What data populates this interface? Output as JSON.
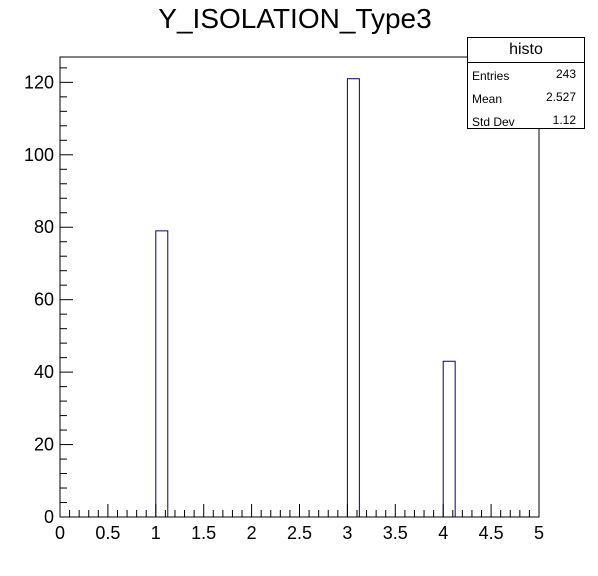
{
  "chart_data": {
    "type": "bar",
    "title": "Y_ISOLATION_Type3",
    "xlabel": "",
    "ylabel": "",
    "xlim": [
      0,
      5
    ],
    "ylim": [
      0,
      127
    ],
    "bin_width": 0.125,
    "x_ticks": [
      "0",
      "0.5",
      "1",
      "1.5",
      "2",
      "2.5",
      "3",
      "3.5",
      "4",
      "4.5",
      "5"
    ],
    "y_ticks": [
      "0",
      "20",
      "40",
      "60",
      "80",
      "100",
      "120"
    ],
    "bins": [
      {
        "x_low": 1.0,
        "x_high": 1.125,
        "value": 79
      },
      {
        "x_low": 3.0,
        "x_high": 3.125,
        "value": 121
      },
      {
        "x_low": 4.0,
        "x_high": 4.125,
        "value": 43
      }
    ],
    "line_color": "#000080",
    "grid": false,
    "legend": "top-right"
  },
  "stats": {
    "title": "histo",
    "rows": [
      {
        "label": "Entries",
        "value": "243"
      },
      {
        "label": "Mean",
        "value": "2.527"
      },
      {
        "label": "Std Dev",
        "value": "1.12"
      }
    ]
  }
}
